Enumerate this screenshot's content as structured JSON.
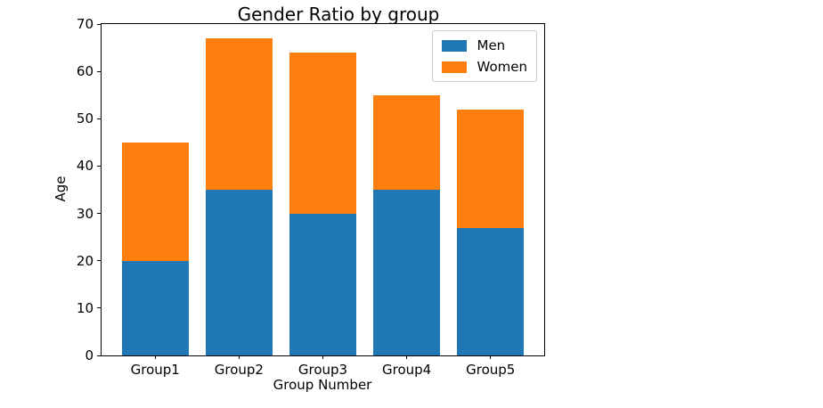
{
  "figure": {
    "background": "#ffffff"
  },
  "chart_data": {
    "type": "bar",
    "stacked": true,
    "title": "Gender Ratio by group",
    "xlabel": "Group Number",
    "ylabel": "Age",
    "categories": [
      "Group1",
      "Group2",
      "Group3",
      "Group4",
      "Group5"
    ],
    "series": [
      {
        "name": "Men",
        "color": "#1f77b4",
        "values": [
          20,
          35,
          30,
          35,
          27
        ]
      },
      {
        "name": "Women",
        "color": "#ff7f0e",
        "values": [
          25,
          32,
          34,
          20,
          25
        ]
      }
    ],
    "totals": [
      45,
      67,
      64,
      55,
      52
    ],
    "ylim": [
      0,
      70
    ],
    "yticks": [
      0,
      10,
      20,
      30,
      40,
      50,
      60,
      70
    ],
    "bar_width": 0.8,
    "grid": false,
    "legend_position": "upper right"
  }
}
